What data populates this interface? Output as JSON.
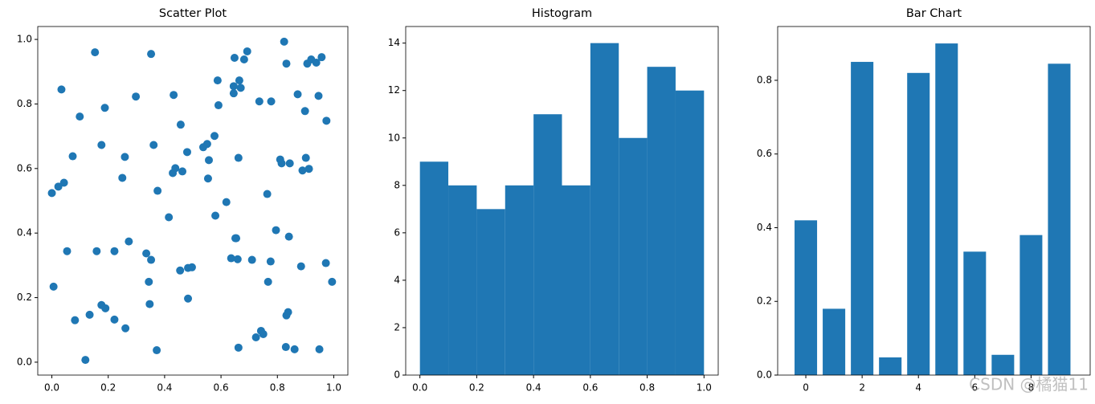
{
  "chart_data": [
    {
      "type": "scatter",
      "title": "Scatter Plot",
      "color": "#1f77b4",
      "x": [
        0.0,
        0.006,
        0.034,
        0.043,
        0.023,
        0.054,
        0.074,
        0.082,
        0.099,
        0.119,
        0.134,
        0.153,
        0.159,
        0.176,
        0.176,
        0.188,
        0.19,
        0.222,
        0.222,
        0.25,
        0.259,
        0.261,
        0.273,
        0.298,
        0.335,
        0.344,
        0.347,
        0.352,
        0.352,
        0.361,
        0.372,
        0.375,
        0.415,
        0.429,
        0.432,
        0.438,
        0.455,
        0.457,
        0.463,
        0.48,
        0.483,
        0.483,
        0.497,
        0.537,
        0.551,
        0.554,
        0.557,
        0.577,
        0.58,
        0.588,
        0.591,
        0.619,
        0.636,
        0.645,
        0.645,
        0.648,
        0.651,
        0.654,
        0.659,
        0.662,
        0.662,
        0.665,
        0.67,
        0.682,
        0.693,
        0.71,
        0.724,
        0.736,
        0.742,
        0.75,
        0.764,
        0.767,
        0.776,
        0.778,
        0.795,
        0.81,
        0.815,
        0.824,
        0.83,
        0.832,
        0.832,
        0.838,
        0.841,
        0.844,
        0.861,
        0.872,
        0.884,
        0.889,
        0.898,
        0.901,
        0.906,
        0.912,
        0.92,
        0.938,
        0.946,
        0.949,
        0.957,
        0.972,
        0.974,
        0.994
      ],
      "values": [
        0.524,
        0.234,
        0.845,
        0.556,
        0.544,
        0.344,
        0.638,
        0.13,
        0.761,
        0.007,
        0.147,
        0.96,
        0.344,
        0.673,
        0.177,
        0.788,
        0.167,
        0.344,
        0.132,
        0.571,
        0.636,
        0.105,
        0.374,
        0.823,
        0.337,
        0.249,
        0.18,
        0.955,
        0.317,
        0.673,
        0.037,
        0.531,
        0.449,
        0.586,
        0.828,
        0.601,
        0.284,
        0.736,
        0.591,
        0.651,
        0.197,
        0.292,
        0.294,
        0.666,
        0.676,
        0.569,
        0.626,
        0.701,
        0.454,
        0.873,
        0.796,
        0.496,
        0.322,
        0.833,
        0.855,
        0.943,
        0.384,
        0.384,
        0.319,
        0.045,
        0.633,
        0.873,
        0.85,
        0.938,
        0.963,
        0.317,
        0.077,
        0.808,
        0.097,
        0.087,
        0.521,
        0.249,
        0.312,
        0.808,
        0.409,
        0.628,
        0.616,
        0.993,
        0.047,
        0.925,
        0.145,
        0.155,
        0.389,
        0.616,
        0.04,
        0.83,
        0.297,
        0.594,
        0.778,
        0.633,
        0.925,
        0.599,
        0.938,
        0.928,
        0.825,
        0.04,
        0.945,
        0.307,
        0.748,
        0.249
      ],
      "xlim": [
        -0.05,
        1.05
      ],
      "ylim": [
        -0.04,
        1.04
      ],
      "xticks": [
        {
          "value": 0,
          "label": "0.0"
        },
        0.2,
        0.4,
        0.6,
        0.8,
        {
          "value": 1,
          "label": "1.0"
        }
      ],
      "yticks": [
        {
          "value": 0,
          "label": "0.0"
        },
        0.2,
        0.4,
        0.6,
        0.8,
        {
          "value": 1,
          "label": "1.0"
        }
      ]
    },
    {
      "type": "histogram",
      "title": "Histogram",
      "color": "#1f77b4",
      "bins": [
        0,
        0.1,
        0.2,
        0.3,
        0.4,
        0.5,
        0.6,
        0.7,
        0.8,
        0.9,
        1.0
      ],
      "values": [
        9,
        8,
        7,
        8,
        11,
        8,
        14,
        10,
        13,
        12
      ],
      "xlim": [
        -0.05,
        1.05
      ],
      "ylim": [
        0,
        14.7
      ],
      "xticks": [
        {
          "value": 0,
          "label": "0.0"
        },
        0.2,
        0.4,
        0.6,
        0.8,
        {
          "value": 1,
          "label": "1.0"
        }
      ],
      "yticks": [
        0,
        2,
        4,
        6,
        8,
        10,
        12,
        14
      ]
    },
    {
      "type": "bar",
      "title": "Bar Chart",
      "color": "#1f77b4",
      "x": [
        0,
        1,
        2,
        3,
        4,
        5,
        6,
        7,
        8,
        9
      ],
      "values": [
        0.42,
        0.18,
        0.85,
        0.048,
        0.82,
        0.9,
        0.335,
        0.055,
        0.38,
        0.845
      ],
      "xlim": [
        -1.0,
        10.1
      ],
      "ylim": [
        0,
        0.946
      ],
      "xticks": [
        0,
        2,
        4,
        6,
        8
      ],
      "yticks": [
        {
          "value": 0,
          "label": "0.0"
        },
        0.2,
        0.4,
        0.6,
        0.8
      ]
    }
  ],
  "watermark": "CSDN @橘猫11"
}
